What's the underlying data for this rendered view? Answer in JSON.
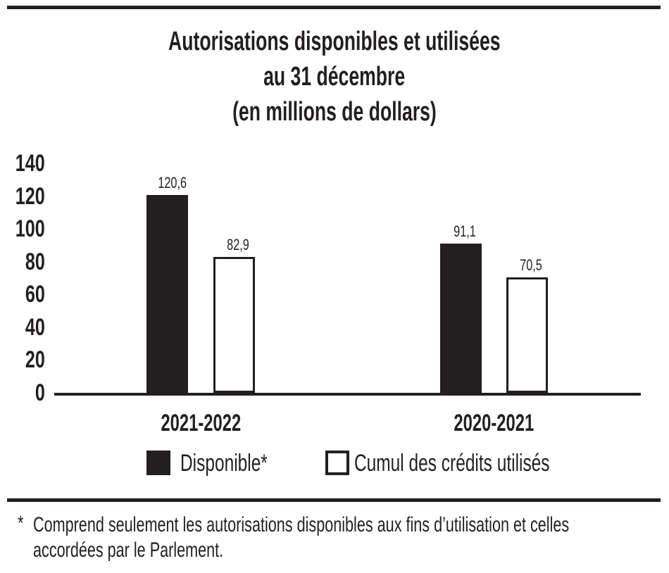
{
  "title": {
    "lines": [
      "Autorisations disponibles et utilisées",
      "au 31 décembre",
      "(en millions de dollars)"
    ]
  },
  "chart_data": {
    "type": "bar",
    "title": "Autorisations disponibles et utilisées au 31 décembre (en millions de dollars)",
    "categories": [
      "2021-2022",
      "2020-2021"
    ],
    "series": [
      {
        "name": "Disponible*",
        "values": [
          120.6,
          91.1
        ],
        "style": "solid"
      },
      {
        "name": "Cumul des crédits utilisés",
        "values": [
          82.9,
          70.5
        ],
        "style": "outlined"
      }
    ],
    "value_labels": [
      [
        "120,6",
        "91,1"
      ],
      [
        "82,9",
        "70,5"
      ]
    ],
    "xlabel": "",
    "ylabel": "",
    "ylim": [
      0,
      140
    ],
    "yticks": [
      0,
      20,
      40,
      60,
      80,
      100,
      120,
      140
    ],
    "grid": false,
    "legend_position": "bottom"
  },
  "footnote": {
    "marker": "*",
    "lines": [
      "Comprend seulement les autorisations disponibles aux fins d’utilisation et celles",
      "accordées par le Parlement."
    ]
  },
  "colors": {
    "ink": "#231f20",
    "bar_solid": "#231f20",
    "bar_outlined_fill": "#ffffff",
    "background": "#ffffff"
  }
}
